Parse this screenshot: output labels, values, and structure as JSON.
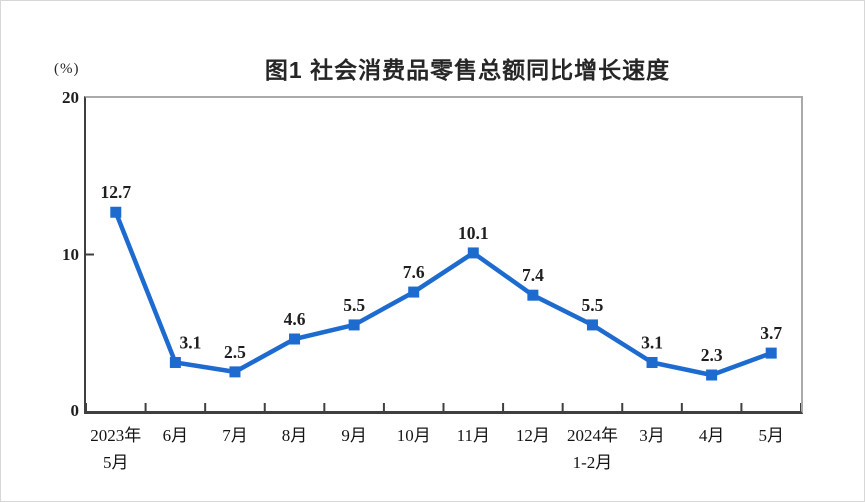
{
  "chart": {
    "title": "图1 社会消费品零售总额同比增长速度",
    "unit_label": "(%)"
  },
  "chart_data": {
    "type": "line",
    "title": "图1 社会消费品零售总额同比增长速度",
    "ylabel": "(%)",
    "xlabel": "",
    "categories": [
      [
        "2023年",
        "5月"
      ],
      [
        "6月"
      ],
      [
        "7月"
      ],
      [
        "8月"
      ],
      [
        "9月"
      ],
      [
        "10月"
      ],
      [
        "11月"
      ],
      [
        "12月"
      ],
      [
        "2024年",
        "1-2月"
      ],
      [
        "3月"
      ],
      [
        "4月"
      ],
      [
        "5月"
      ]
    ],
    "values": [
      12.7,
      3.1,
      2.5,
      4.6,
      5.5,
      7.6,
      10.1,
      7.4,
      5.5,
      3.1,
      2.3,
      3.7
    ],
    "ylim": [
      0,
      20
    ],
    "yticks": [
      0,
      10,
      20
    ],
    "grid": "off",
    "legend": "none",
    "marker": "square",
    "line_color": "#1e6bd0",
    "value_label_color": "#1f1f1f",
    "axis_dark_color": "#3f3f3f",
    "axis_light_color": "#aaaaaa",
    "text_color": "#141414"
  }
}
